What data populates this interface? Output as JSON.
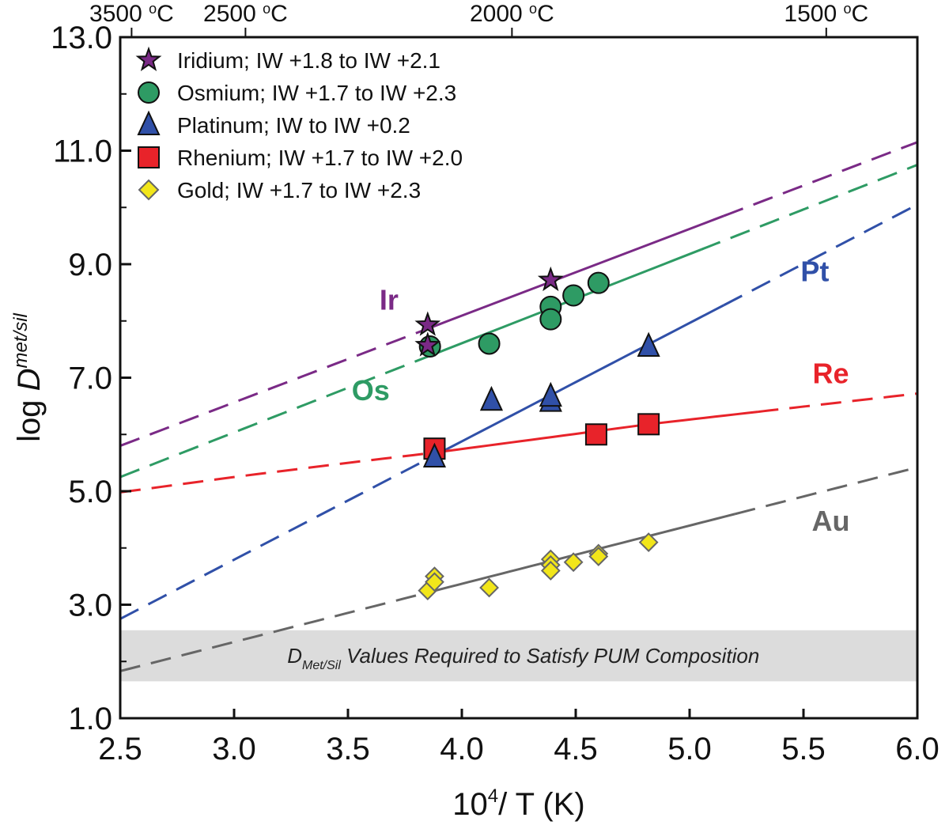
{
  "chart_data": {
    "type": "scatter",
    "xlabel": "10⁴/ T (K)",
    "xlabel_parts": {
      "base": "10",
      "sup": "4",
      "rest": "/ T (K)"
    },
    "ylabel": "log D^met/sil",
    "ylabel_parts": {
      "prefix": "log ",
      "main": "D",
      "sup": "met/sil"
    },
    "xlim": [
      2.5,
      6.0
    ],
    "ylim": [
      1.0,
      13.0
    ],
    "x_ticks": [
      "2.5",
      "3.0",
      "3.5",
      "4.0",
      "4.5",
      "5.0",
      "5.5",
      "6.0"
    ],
    "y_ticks": [
      "1.0",
      "3.0",
      "5.0",
      "7.0",
      "9.0",
      "11.0",
      "13.0"
    ],
    "top_axis": [
      {
        "label": "3500 °C",
        "num": "3500 ",
        "unit": "C",
        "x": 2.55
      },
      {
        "label": "2500 °C",
        "num": "2500 ",
        "unit": "C",
        "x": 3.05
      },
      {
        "label": "2000 °C",
        "num": "2000 ",
        "unit": "C",
        "x": 4.22
      },
      {
        "label": "1500 °C",
        "num": "1500 ",
        "unit": "C",
        "x": 5.6
      }
    ],
    "band": {
      "ymin": 1.65,
      "ymax": 2.55,
      "label_main": "D",
      "label_sub": "Met/Sil",
      "label_rest": " Values Required to Satisfy PUM Composition",
      "color": "#dcdcdc"
    },
    "legend": {
      "position": "top-left"
    },
    "series": [
      {
        "name": "Iridium; IW +1.8 to IW +2.1",
        "short": "Ir",
        "marker": "star",
        "color": "#7a2a86",
        "line_color": "#7a2a86",
        "label_pos": [
          3.68,
          8.2
        ],
        "points": [
          [
            3.85,
            7.93
          ],
          [
            3.85,
            7.57
          ],
          [
            4.39,
            8.72
          ]
        ],
        "fit": [
          [
            2.5,
            5.8
          ],
          [
            6.0,
            11.15
          ]
        ],
        "solid": [
          3.85,
          5.15
        ]
      },
      {
        "name": "Osmium; IW +1.7 to IW +2.3",
        "short": "Os",
        "marker": "circle",
        "color": "#2e9b64",
        "line_color": "#2e9b64",
        "label_pos": [
          3.6,
          6.6
        ],
        "points": [
          [
            3.86,
            7.55
          ],
          [
            4.12,
            7.6
          ],
          [
            4.39,
            8.25
          ],
          [
            4.39,
            8.03
          ],
          [
            4.49,
            8.45
          ],
          [
            4.6,
            8.67
          ]
        ],
        "fit": [
          [
            2.5,
            5.25
          ],
          [
            6.0,
            10.75
          ]
        ],
        "solid": [
          3.85,
          5.05
        ]
      },
      {
        "name": "Platinum; IW to IW +0.2",
        "short": "Pt",
        "marker": "triangle",
        "color": "#3050a8",
        "line_color": "#3050a8",
        "label_pos": [
          5.55,
          8.7
        ],
        "points": [
          [
            3.88,
            5.6
          ],
          [
            4.13,
            6.6
          ],
          [
            4.39,
            6.58
          ],
          [
            4.39,
            6.67
          ],
          [
            4.82,
            7.55
          ]
        ],
        "fit": [
          [
            2.5,
            2.75
          ],
          [
            6.0,
            10.05
          ]
        ],
        "solid": [
          3.88,
          5.15
        ]
      },
      {
        "name": "Rhenium; IW +1.7 to IW +2.0",
        "short": "Re",
        "marker": "square",
        "color": "#e8232a",
        "line_color": "#e8232a",
        "label_pos": [
          5.62,
          6.9
        ],
        "points": [
          [
            3.88,
            5.75
          ],
          [
            4.59,
            6.0
          ],
          [
            4.82,
            6.18
          ]
        ],
        "fit": [
          [
            2.5,
            4.98
          ],
          [
            3.0,
            5.25
          ],
          [
            3.5,
            5.5
          ],
          [
            3.88,
            5.68
          ],
          [
            4.82,
            6.18
          ],
          [
            6.0,
            6.72
          ]
        ],
        "solid": [
          3.88,
          5.3
        ]
      },
      {
        "name": "Gold; IW +1.7 to IW +2.3",
        "short": "Au",
        "marker": "diamond",
        "color": "#f2e61a",
        "line_color": "#666666",
        "label_pos": [
          5.62,
          4.3
        ],
        "points": [
          [
            3.85,
            3.25
          ],
          [
            3.88,
            3.5
          ],
          [
            3.88,
            3.4
          ],
          [
            4.12,
            3.3
          ],
          [
            4.39,
            3.8
          ],
          [
            4.39,
            3.7
          ],
          [
            4.39,
            3.6
          ],
          [
            4.49,
            3.75
          ],
          [
            4.6,
            3.9
          ],
          [
            4.6,
            3.85
          ],
          [
            4.82,
            4.1
          ]
        ],
        "fit": [
          [
            2.5,
            1.83
          ],
          [
            6.0,
            5.42
          ]
        ],
        "solid": [
          3.85,
          5.2
        ]
      }
    ]
  }
}
